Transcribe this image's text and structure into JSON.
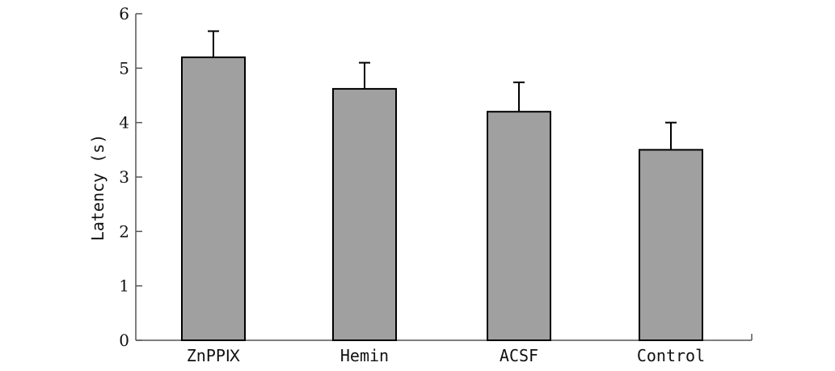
{
  "chart_data": {
    "type": "bar",
    "categories": [
      "ZnPPⅨ",
      "Hemin",
      "ACSF",
      "Control"
    ],
    "values": [
      5.2,
      4.62,
      4.2,
      3.5
    ],
    "errors": [
      0.48,
      0.48,
      0.54,
      0.5
    ],
    "title": "",
    "xlabel": "",
    "ylabel": "Latency (s)",
    "ylim": [
      0,
      6
    ],
    "yticks": [
      0,
      1,
      2,
      3,
      4,
      5,
      6
    ],
    "grid": false,
    "bar_color": "#a0a0a0",
    "edge_color": "#000000"
  }
}
